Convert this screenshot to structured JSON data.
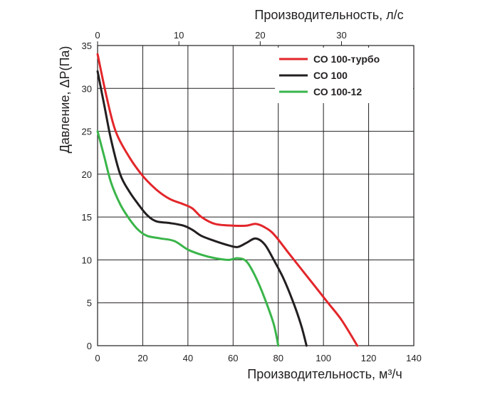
{
  "chart_data": {
    "type": "line",
    "xlabel_bottom": "Производительность, м³/ч",
    "xlabel_top": "Производительность, л/с",
    "ylabel": "Давление, ΔР(Па)",
    "xlim": [
      0,
      140
    ],
    "ylim": [
      0,
      35
    ],
    "x_ticks": [
      "0",
      "20",
      "40",
      "60",
      "80",
      "100",
      "120",
      "140"
    ],
    "x_ticks_top": [
      "0",
      "10",
      "20",
      "30"
    ],
    "y_ticks": [
      "0",
      "5",
      "10",
      "15",
      "20",
      "25",
      "30",
      "35"
    ],
    "grid": true,
    "legend_position": "top-right",
    "series": [
      {
        "name": "СО 100-турбо",
        "color": "#e3262a",
        "points": [
          [
            0,
            34
          ],
          [
            4,
            29
          ],
          [
            8,
            25
          ],
          [
            14,
            22
          ],
          [
            20,
            19.8
          ],
          [
            26,
            18.2
          ],
          [
            32,
            17.1
          ],
          [
            38,
            16.5
          ],
          [
            42,
            16
          ],
          [
            46,
            15
          ],
          [
            52,
            14.2
          ],
          [
            60,
            14
          ],
          [
            66,
            14
          ],
          [
            70,
            14.2
          ],
          [
            74,
            13.8
          ],
          [
            78,
            13
          ],
          [
            84,
            11
          ],
          [
            90,
            9
          ],
          [
            96,
            7
          ],
          [
            102,
            5
          ],
          [
            108,
            3
          ],
          [
            115,
            0
          ]
        ]
      },
      {
        "name": "СО 100",
        "color": "#231f20",
        "points": [
          [
            0,
            32
          ],
          [
            3,
            28
          ],
          [
            6,
            24
          ],
          [
            10,
            20
          ],
          [
            14,
            18
          ],
          [
            18,
            16.5
          ],
          [
            22,
            15.2
          ],
          [
            26,
            14.5
          ],
          [
            32,
            14.3
          ],
          [
            38,
            14
          ],
          [
            42,
            13.5
          ],
          [
            46,
            12.8
          ],
          [
            52,
            12.2
          ],
          [
            58,
            11.7
          ],
          [
            62,
            11.5
          ],
          [
            66,
            12
          ],
          [
            70,
            12.5
          ],
          [
            74,
            11.8
          ],
          [
            78,
            10
          ],
          [
            82,
            8
          ],
          [
            86,
            5.5
          ],
          [
            90,
            2.5
          ],
          [
            92.5,
            0
          ]
        ]
      },
      {
        "name": "СО 100-12",
        "color": "#3ab54a",
        "points": [
          [
            0,
            25
          ],
          [
            3,
            22
          ],
          [
            6,
            19
          ],
          [
            10,
            16.5
          ],
          [
            14,
            14.8
          ],
          [
            18,
            13.5
          ],
          [
            22,
            12.8
          ],
          [
            28,
            12.5
          ],
          [
            34,
            12.2
          ],
          [
            40,
            11.2
          ],
          [
            46,
            10.6
          ],
          [
            52,
            10.2
          ],
          [
            58,
            10
          ],
          [
            62,
            10.2
          ],
          [
            66,
            9.8
          ],
          [
            70,
            8
          ],
          [
            74,
            5.5
          ],
          [
            78,
            2.5
          ],
          [
            80,
            0
          ]
        ]
      }
    ]
  }
}
